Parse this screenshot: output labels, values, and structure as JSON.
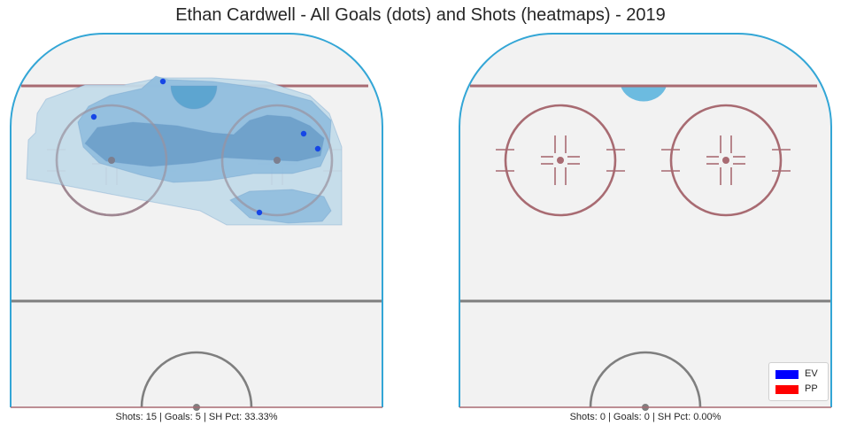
{
  "title": "Ethan Cardwell - All Goals (dots) and Shots (heatmaps) - 2019",
  "colors": {
    "rink_fill": "#f2f2f2",
    "boards": "#33a6d6",
    "red_line": "#a86b72",
    "blue_line": "#7f7f7f",
    "faceoff": "#a86b72",
    "crease": "#6cbbe0",
    "heat_levels": [
      "#c3dbe9",
      "#8fbcde",
      "#6a9cc8",
      "#4f7fb3"
    ],
    "ev": "#0000ff",
    "pp": "#ff0000",
    "goal_dot": "#1646e6"
  },
  "legend": [
    {
      "label": "EV",
      "color": "#0000ff"
    },
    {
      "label": "PP",
      "color": "#ff0000"
    }
  ],
  "chart_data": [
    {
      "type": "scatter",
      "panel": "left",
      "caption": "Shots: 15 | Goals: 5 | SH Pct: 33.33%",
      "stats": {
        "shots": 15,
        "goals": 5,
        "sh_pct": 33.33
      },
      "goals": [
        {
          "x": 172,
          "y": 74
        },
        {
          "x": 94,
          "y": 114
        },
        {
          "x": 331,
          "y": 133
        },
        {
          "x": 347,
          "y": 150
        },
        {
          "x": 281,
          "y": 222
        }
      ],
      "heatmap": "shot-density"
    },
    {
      "type": "scatter",
      "panel": "right",
      "caption": "Shots: 0 | Goals: 0 | SH Pct: 0.00%",
      "stats": {
        "shots": 0,
        "goals": 0,
        "sh_pct": 0.0
      },
      "goals": [],
      "heatmap": "none"
    }
  ]
}
